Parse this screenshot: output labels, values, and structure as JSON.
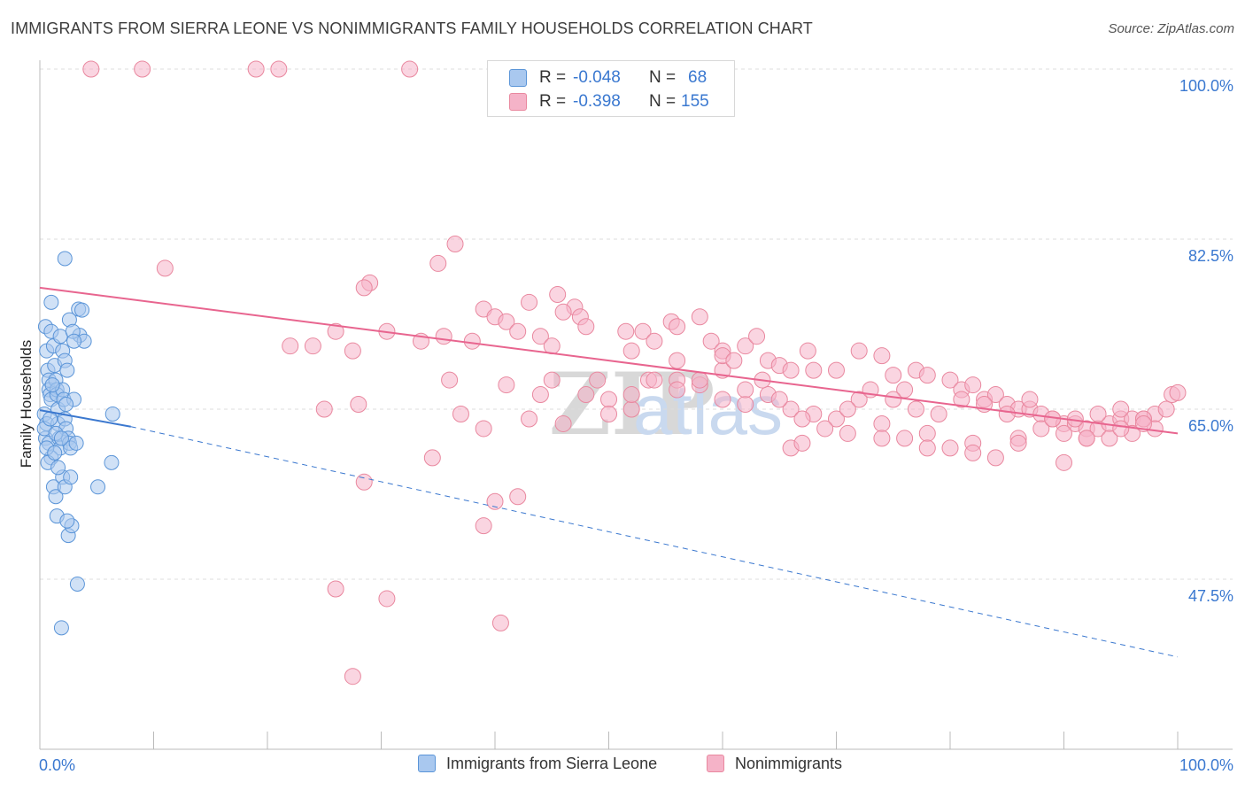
{
  "title": "IMMIGRANTS FROM SIERRA LEONE VS NONIMMIGRANTS FAMILY HOUSEHOLDS CORRELATION CHART",
  "source": "Source: ZipAtlas.com",
  "watermark": {
    "zip": "ZIP",
    "atlas": "atlas"
  },
  "legend": {
    "rows": [
      {
        "r_label": "R =",
        "r_value": "-0.048",
        "n_label": "N =",
        "n_value": "68"
      },
      {
        "r_label": "R =",
        "r_value": "-0.398",
        "n_label": "N =",
        "n_value": "155"
      }
    ]
  },
  "bottom_legend": {
    "series1": "Immigrants from Sierra Leone",
    "series2": "Nonimmigrants"
  },
  "colors": {
    "blue_fill": "#a9c8ef",
    "blue_stroke": "#5b95d8",
    "blue_line": "#3b78cf",
    "pink_fill": "#f5b3c8",
    "pink_stroke": "#e9889f",
    "pink_line": "#e8658f",
    "axis_text": "#3a78d0",
    "grid": "#dcdcdc"
  },
  "chart_data": {
    "type": "scatter",
    "title": "IMMIGRANTS FROM SIERRA LEONE VS NONIMMIGRANTS FAMILY HOUSEHOLDS CORRELATION CHART",
    "xlabel": "",
    "ylabel": "Family Households",
    "xlim": [
      0,
      100
    ],
    "ylim": [
      30,
      100
    ],
    "x_tick_labels": [
      "0.0%",
      "100.0%"
    ],
    "y_ticks": [
      47.5,
      65.0,
      82.5,
      100.0
    ],
    "y_tick_labels": [
      "47.5%",
      "65.0%",
      "82.5%",
      "100.0%"
    ],
    "series": [
      {
        "name": "Immigrants from Sierra Leone",
        "r": -0.048,
        "n": 68,
        "trend_solid": {
          "x": [
            0,
            8
          ],
          "y": [
            64.9,
            63.2
          ]
        },
        "trend_dashed": {
          "x": [
            8,
            100
          ],
          "y": [
            63.2,
            39.5
          ]
        },
        "points": [
          [
            0.5,
            73.5
          ],
          [
            0.6,
            71
          ],
          [
            0.7,
            69
          ],
          [
            0.8,
            68
          ],
          [
            0.8,
            67
          ],
          [
            0.9,
            66.5
          ],
          [
            1.0,
            66
          ],
          [
            0.4,
            64.5
          ],
          [
            0.6,
            63.5
          ],
          [
            0.5,
            62
          ],
          [
            0.8,
            61.5
          ],
          [
            1.2,
            71.5
          ],
          [
            1.3,
            69.5
          ],
          [
            1.4,
            68
          ],
          [
            1.5,
            67
          ],
          [
            1.5,
            66.5
          ],
          [
            1.6,
            65
          ],
          [
            1.6,
            63.5
          ],
          [
            1.7,
            62
          ],
          [
            1.8,
            61
          ],
          [
            1.0,
            60
          ],
          [
            1.2,
            57
          ],
          [
            1.4,
            56
          ],
          [
            1.5,
            54
          ],
          [
            1.0,
            73
          ],
          [
            1.8,
            72.5
          ],
          [
            2.0,
            71
          ],
          [
            2.2,
            70
          ],
          [
            2.4,
            69
          ],
          [
            2.0,
            67
          ],
          [
            2.1,
            66
          ],
          [
            2.2,
            64
          ],
          [
            2.3,
            63
          ],
          [
            2.5,
            62
          ],
          [
            2.6,
            61.5
          ],
          [
            2.7,
            61
          ],
          [
            2.0,
            58
          ],
          [
            2.2,
            57
          ],
          [
            2.5,
            52
          ],
          [
            2.8,
            53
          ],
          [
            2.2,
            80.5
          ],
          [
            3.4,
            75.3
          ],
          [
            3.7,
            75.2
          ],
          [
            3.5,
            72.6
          ],
          [
            3.9,
            72
          ],
          [
            2.6,
            74.2
          ],
          [
            2.9,
            73
          ],
          [
            3.0,
            72
          ],
          [
            1.0,
            76
          ],
          [
            0.6,
            61
          ],
          [
            0.7,
            59.5
          ],
          [
            0.4,
            63
          ],
          [
            1.3,
            60.5
          ],
          [
            1.6,
            59
          ],
          [
            3.0,
            66
          ],
          [
            3.2,
            61.5
          ],
          [
            2.7,
            58
          ],
          [
            2.4,
            53.5
          ],
          [
            3.3,
            47
          ],
          [
            1.9,
            42.5
          ],
          [
            6.3,
            59.5
          ],
          [
            5.1,
            57
          ],
          [
            6.4,
            64.5
          ],
          [
            0.9,
            64
          ],
          [
            1.1,
            67.5
          ],
          [
            1.4,
            62.5
          ],
          [
            1.9,
            62
          ],
          [
            2.3,
            65.5
          ]
        ]
      },
      {
        "name": "Nonimmigrants",
        "r": -0.398,
        "n": 155,
        "trend": {
          "x": [
            0,
            100
          ],
          "y": [
            77.5,
            62.5
          ]
        },
        "points": [
          [
            4.5,
            100
          ],
          [
            9,
            100
          ],
          [
            19,
            100
          ],
          [
            21,
            100
          ],
          [
            32.5,
            100
          ],
          [
            11,
            79.5
          ],
          [
            36.5,
            82
          ],
          [
            35,
            80
          ],
          [
            29,
            78
          ],
          [
            28.5,
            77.5
          ],
          [
            39,
            75.3
          ],
          [
            40,
            74.5
          ],
          [
            43,
            76
          ],
          [
            45.5,
            76.8
          ],
          [
            47,
            75.5
          ],
          [
            46,
            75
          ],
          [
            47.5,
            74.5
          ],
          [
            33.5,
            72
          ],
          [
            35.5,
            72.5
          ],
          [
            26,
            73
          ],
          [
            30.5,
            73
          ],
          [
            22,
            71.5
          ],
          [
            24,
            71.5
          ],
          [
            27.5,
            71
          ],
          [
            38,
            72
          ],
          [
            41,
            74
          ],
          [
            42,
            73
          ],
          [
            44,
            72.5
          ],
          [
            45,
            71.5
          ],
          [
            48,
            73.5
          ],
          [
            51.5,
            73
          ],
          [
            53,
            73
          ],
          [
            54,
            72
          ],
          [
            52,
            71
          ],
          [
            55.5,
            74
          ],
          [
            56,
            73.5
          ],
          [
            58,
            74.5
          ],
          [
            59,
            72
          ],
          [
            60,
            71
          ],
          [
            62,
            71.5
          ],
          [
            64,
            70
          ],
          [
            63,
            72.5
          ],
          [
            65,
            69.5
          ],
          [
            66,
            69
          ],
          [
            67.5,
            71
          ],
          [
            68,
            69
          ],
          [
            70,
            69
          ],
          [
            72,
            71
          ],
          [
            74,
            70.5
          ],
          [
            75,
            68.5
          ],
          [
            76,
            67
          ],
          [
            77,
            69
          ],
          [
            78,
            68.5
          ],
          [
            80,
            68
          ],
          [
            81,
            67
          ],
          [
            82,
            67.5
          ],
          [
            83,
            66
          ],
          [
            84,
            66.5
          ],
          [
            85,
            65.5
          ],
          [
            86,
            65
          ],
          [
            87,
            65
          ],
          [
            88,
            64.5
          ],
          [
            89,
            64
          ],
          [
            90,
            63.5
          ],
          [
            91,
            63.5
          ],
          [
            92,
            63
          ],
          [
            93,
            63
          ],
          [
            94,
            63.5
          ],
          [
            95,
            64
          ],
          [
            96,
            64
          ],
          [
            97,
            64
          ],
          [
            98,
            64.5
          ],
          [
            99,
            65
          ],
          [
            99.5,
            66.5
          ],
          [
            100,
            66.7
          ],
          [
            53.5,
            68
          ],
          [
            56,
            68
          ],
          [
            58,
            67.5
          ],
          [
            60,
            66
          ],
          [
            62,
            65.5
          ],
          [
            64,
            66.5
          ],
          [
            66,
            65
          ],
          [
            68,
            64.5
          ],
          [
            70,
            64
          ],
          [
            72,
            66
          ],
          [
            74,
            63.5
          ],
          [
            76,
            62
          ],
          [
            78,
            62.5
          ],
          [
            80,
            61
          ],
          [
            82,
            61.5
          ],
          [
            84,
            60
          ],
          [
            86,
            62
          ],
          [
            88,
            63
          ],
          [
            90,
            62.5
          ],
          [
            92,
            62
          ],
          [
            94,
            62
          ],
          [
            96,
            62.5
          ],
          [
            98,
            63
          ],
          [
            36,
            68
          ],
          [
            41,
            67.5
          ],
          [
            45,
            68
          ],
          [
            49,
            68
          ],
          [
            50,
            66
          ],
          [
            52,
            65
          ],
          [
            54,
            68
          ],
          [
            56,
            67
          ],
          [
            58,
            68
          ],
          [
            60,
            69
          ],
          [
            62,
            67
          ],
          [
            63.5,
            68
          ],
          [
            65,
            66
          ],
          [
            67,
            64
          ],
          [
            69,
            63
          ],
          [
            71,
            65
          ],
          [
            73,
            67
          ],
          [
            75,
            66
          ],
          [
            77,
            65
          ],
          [
            79,
            64.5
          ],
          [
            81,
            66
          ],
          [
            83,
            65.5
          ],
          [
            85,
            64.5
          ],
          [
            87,
            66
          ],
          [
            89,
            64
          ],
          [
            91,
            64
          ],
          [
            93,
            64.5
          ],
          [
            95,
            65
          ],
          [
            97,
            64
          ],
          [
            34.5,
            60
          ],
          [
            25,
            65
          ],
          [
            28,
            65.5
          ],
          [
            37,
            64.5
          ],
          [
            39,
            63
          ],
          [
            43,
            64
          ],
          [
            46,
            63.5
          ],
          [
            50,
            64.5
          ],
          [
            52,
            66.5
          ],
          [
            56,
            70
          ],
          [
            60,
            70.5
          ],
          [
            61,
            70
          ],
          [
            66,
            61
          ],
          [
            67,
            61.5
          ],
          [
            71,
            62.5
          ],
          [
            74,
            62
          ],
          [
            78,
            61
          ],
          [
            82,
            60.5
          ],
          [
            86,
            61.5
          ],
          [
            90,
            59.5
          ],
          [
            92,
            62
          ],
          [
            95,
            63
          ],
          [
            97,
            63.5
          ],
          [
            28.5,
            57.5
          ],
          [
            40,
            55.5
          ],
          [
            42,
            56
          ],
          [
            39,
            53
          ],
          [
            26,
            46.5
          ],
          [
            30.5,
            45.5
          ],
          [
            40.5,
            43
          ],
          [
            27.5,
            37.5
          ],
          [
            48,
            66.5
          ],
          [
            44,
            66.5
          ]
        ]
      }
    ]
  }
}
